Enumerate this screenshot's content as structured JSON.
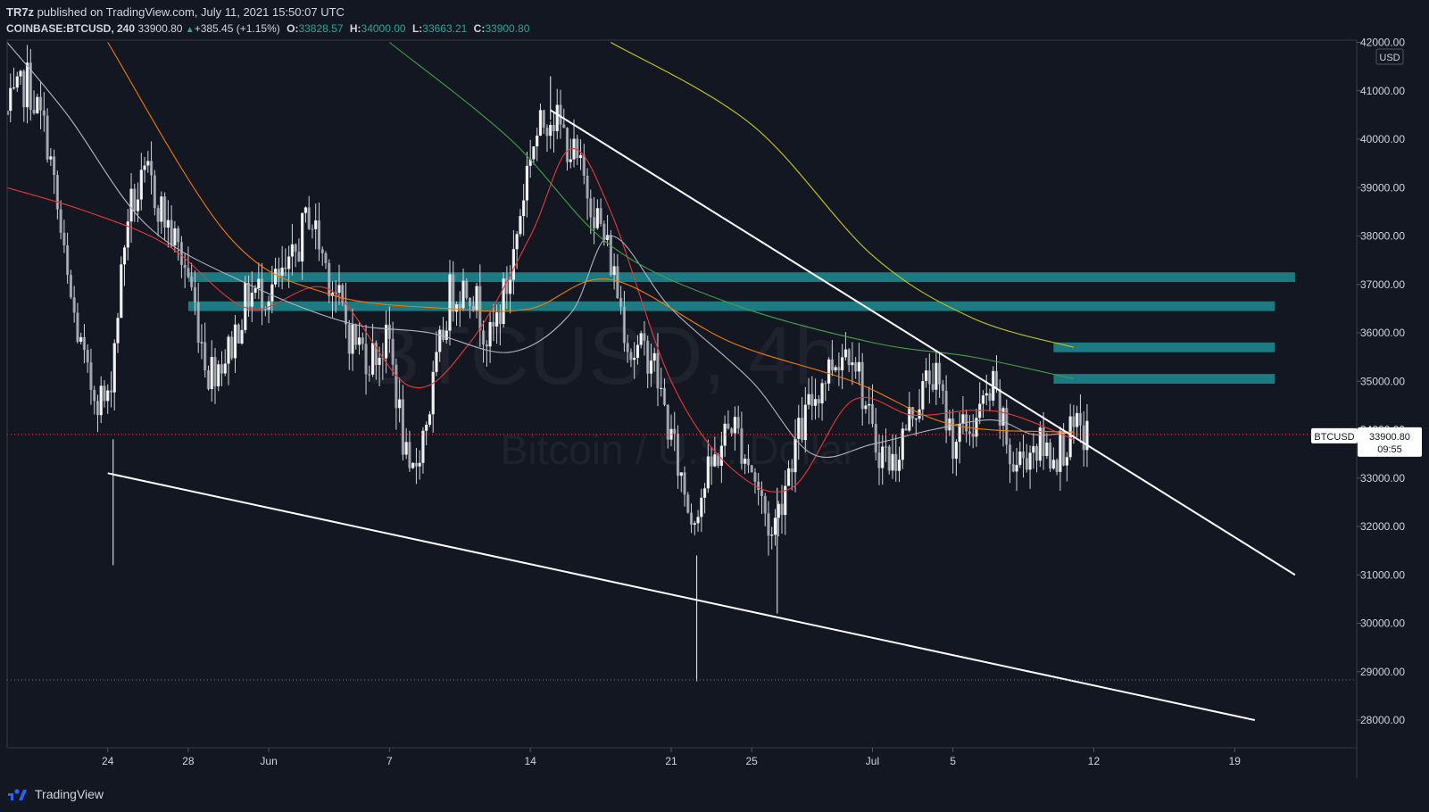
{
  "header": {
    "author": "TR7z",
    "published_text": " published on TradingView.com, July 11, 2021 15:50:07 UTC",
    "symbol": "COINBASE:BTCUSD, 240",
    "last": "33900.80",
    "change": "+385.45 (+1.15%)",
    "o_label": "O:",
    "o_value": "33828.57",
    "h_label": "H:",
    "h_value": "34000.00",
    "l_label": "L:",
    "l_value": "33663.21",
    "c_label": "C:",
    "c_value": "33900.80"
  },
  "watermark": {
    "main": "BTCUSD, 4h",
    "sub": "Bitcoin / U.S. Dollar"
  },
  "price_axis": {
    "currency": "USD",
    "price_tag_symbol": "BTCUSD",
    "price_tag_value": "33900.80",
    "price_tag_countdown": "09:55"
  },
  "footer": {
    "brand": "TradingView"
  },
  "colors": {
    "background": "#131722",
    "up_candle": "#d1d4dc",
    "down_candle": "#d1d4dc",
    "zone": "#1e8c93",
    "ma_red": "#e53935",
    "ma_orange": "#f57c00",
    "ma_white": "#b2b5be",
    "ma_green": "#43a047",
    "ma_yellow": "#c8c814",
    "trendline": "#ffffff",
    "last_price_line": "#ef5350"
  },
  "chart_data": {
    "type": "candlestick",
    "symbol": "COINBASE:BTCUSD",
    "timeframe": "240",
    "ylim": [
      27600,
      42000
    ],
    "x_range": [
      "2021-05-19",
      "2021-07-24"
    ],
    "y_ticks": [
      "28000.00",
      "29000.00",
      "30000.00",
      "31000.00",
      "32000.00",
      "33000.00",
      "34000.00",
      "35000.00",
      "36000.00",
      "37000.00",
      "38000.00",
      "39000.00",
      "40000.00",
      "41000.00",
      "42000.00"
    ],
    "x_ticks": [
      {
        "label": "24",
        "date": "2021-05-24"
      },
      {
        "label": "28",
        "date": "2021-05-28"
      },
      {
        "label": "Jun",
        "date": "2021-06-01"
      },
      {
        "label": "7",
        "date": "2021-06-07"
      },
      {
        "label": "14",
        "date": "2021-06-14"
      },
      {
        "label": "21",
        "date": "2021-06-21"
      },
      {
        "label": "25",
        "date": "2021-06-25"
      },
      {
        "label": "Jul",
        "date": "2021-07-01"
      },
      {
        "label": "5",
        "date": "2021-07-05"
      },
      {
        "label": "12",
        "date": "2021-07-12"
      },
      {
        "label": "19",
        "date": "2021-07-19"
      }
    ],
    "candles_close_path": [
      [
        "2021-05-19",
        40500
      ],
      [
        "2021-05-20",
        41200
      ],
      [
        "2021-05-21",
        40000
      ],
      [
        "2021-05-22",
        37000
      ],
      [
        "2021-05-23",
        35000
      ],
      [
        "2021-05-24",
        34500
      ],
      [
        "2021-05-25",
        38500
      ],
      [
        "2021-05-26",
        39200
      ],
      [
        "2021-05-27",
        38200
      ],
      [
        "2021-05-28",
        37200
      ],
      [
        "2021-05-29",
        35200
      ],
      [
        "2021-05-30",
        35600
      ],
      [
        "2021-05-31",
        36800
      ],
      [
        "2021-06-01",
        36900
      ],
      [
        "2021-06-02",
        37200
      ],
      [
        "2021-06-03",
        38500
      ],
      [
        "2021-06-04",
        37200
      ],
      [
        "2021-06-05",
        36000
      ],
      [
        "2021-06-06",
        35500
      ],
      [
        "2021-06-07",
        35800
      ],
      [
        "2021-06-08",
        32800
      ],
      [
        "2021-06-09",
        34500
      ],
      [
        "2021-06-10",
        36800
      ],
      [
        "2021-06-11",
        37000
      ],
      [
        "2021-06-12",
        35800
      ],
      [
        "2021-06-13",
        37200
      ],
      [
        "2021-06-14",
        39800
      ],
      [
        "2021-06-15",
        40600
      ],
      [
        "2021-06-16",
        39800
      ],
      [
        "2021-06-17",
        38800
      ],
      [
        "2021-06-18",
        37500
      ],
      [
        "2021-06-19",
        35600
      ],
      [
        "2021-06-20",
        35600
      ],
      [
        "2021-06-21",
        33800
      ],
      [
        "2021-06-22",
        32200
      ],
      [
        "2021-06-23",
        33200
      ],
      [
        "2021-06-24",
        34200
      ],
      [
        "2021-06-25",
        33200
      ],
      [
        "2021-06-26",
        31800
      ],
      [
        "2021-06-27",
        33500
      ],
      [
        "2021-06-28",
        34600
      ],
      [
        "2021-06-29",
        35400
      ],
      [
        "2021-06-30",
        35800
      ],
      [
        "2021-07-01",
        33800
      ],
      [
        "2021-07-02",
        33300
      ],
      [
        "2021-07-03",
        34400
      ],
      [
        "2021-07-04",
        35200
      ],
      [
        "2021-07-05",
        33800
      ],
      [
        "2021-07-06",
        34100
      ],
      [
        "2021-07-07",
        34800
      ],
      [
        "2021-07-08",
        33200
      ],
      [
        "2021-07-09",
        33700
      ],
      [
        "2021-07-10",
        33500
      ],
      [
        "2021-07-11",
        33900
      ]
    ],
    "notable_extremes": [
      {
        "date": "2021-06-15",
        "high": 41300
      },
      {
        "date": "2021-06-22",
        "low": 28800
      },
      {
        "date": "2021-06-26",
        "low": 30200
      },
      {
        "date": "2021-05-24",
        "low": 31200
      }
    ],
    "horizontal_zones": [
      {
        "from": "2021-05-28",
        "to": "2021-07-22",
        "low": 37050,
        "high": 37250
      },
      {
        "from": "2021-05-28",
        "to": "2021-07-21",
        "low": 36450,
        "high": 36650
      },
      {
        "from": "2021-07-10",
        "to": "2021-07-21",
        "low": 35600,
        "high": 35800
      },
      {
        "from": "2021-07-10",
        "to": "2021-07-21",
        "low": 34950,
        "high": 35150
      }
    ],
    "trendlines": [
      {
        "name": "upper",
        "start": [
          "2021-06-15",
          40600
        ],
        "end": [
          "2021-07-22",
          31000
        ]
      },
      {
        "name": "lower",
        "start": [
          "2021-05-24",
          33100
        ],
        "end": [
          "2021-07-20",
          28000
        ]
      }
    ],
    "moving_averages": [
      {
        "color": "#e53935",
        "points": [
          [
            "2021-05-19",
            39000
          ],
          [
            "2021-05-23",
            38500
          ],
          [
            "2021-05-27",
            37800
          ],
          [
            "2021-05-31",
            36500
          ],
          [
            "2021-06-04",
            36900
          ],
          [
            "2021-06-08",
            34900
          ],
          [
            "2021-06-11",
            35800
          ],
          [
            "2021-06-14",
            38000
          ],
          [
            "2021-06-16",
            39800
          ],
          [
            "2021-06-18",
            38500
          ],
          [
            "2021-06-21",
            35000
          ],
          [
            "2021-06-24",
            33200
          ],
          [
            "2021-06-27",
            32800
          ],
          [
            "2021-06-30",
            34600
          ],
          [
            "2021-07-03",
            34300
          ],
          [
            "2021-07-06",
            34400
          ],
          [
            "2021-07-08",
            34300
          ],
          [
            "2021-07-11",
            33800
          ]
        ]
      },
      {
        "color": "#b2b5be",
        "points": [
          [
            "2021-05-19",
            42000
          ],
          [
            "2021-05-22",
            40500
          ],
          [
            "2021-05-26",
            38200
          ],
          [
            "2021-05-31",
            37000
          ],
          [
            "2021-06-05",
            36200
          ],
          [
            "2021-06-09",
            36000
          ],
          [
            "2021-06-13",
            35600
          ],
          [
            "2021-06-16",
            36400
          ],
          [
            "2021-06-18",
            38000
          ],
          [
            "2021-06-21",
            36500
          ],
          [
            "2021-06-25",
            35000
          ],
          [
            "2021-06-28",
            33500
          ],
          [
            "2021-07-01",
            33700
          ],
          [
            "2021-07-04",
            34000
          ],
          [
            "2021-07-07",
            34200
          ],
          [
            "2021-07-09",
            33900
          ],
          [
            "2021-07-11",
            33950
          ]
        ]
      },
      {
        "color": "#f57c00",
        "points": [
          [
            "2021-05-24",
            42000
          ],
          [
            "2021-05-30",
            38000
          ],
          [
            "2021-06-04",
            36800
          ],
          [
            "2021-06-10",
            36500
          ],
          [
            "2021-06-14",
            36500
          ],
          [
            "2021-06-18",
            37100
          ],
          [
            "2021-06-24",
            35800
          ],
          [
            "2021-06-30",
            35000
          ],
          [
            "2021-07-05",
            34100
          ],
          [
            "2021-07-11",
            33950
          ]
        ]
      },
      {
        "color": "#43a047",
        "points": [
          [
            "2021-06-07",
            42000
          ],
          [
            "2021-06-13",
            40000
          ],
          [
            "2021-06-18",
            37800
          ],
          [
            "2021-06-24",
            36600
          ],
          [
            "2021-07-01",
            35800
          ],
          [
            "2021-07-06",
            35500
          ],
          [
            "2021-07-11",
            35050
          ]
        ]
      },
      {
        "color": "#c8c814",
        "points": [
          [
            "2021-06-18",
            42000
          ],
          [
            "2021-06-25",
            40300
          ],
          [
            "2021-07-01",
            37600
          ],
          [
            "2021-07-06",
            36300
          ],
          [
            "2021-07-11",
            35700
          ]
        ]
      }
    ],
    "last_price": 33900.8,
    "dotted_level": 28830,
    "xlabel": "",
    "ylabel": "",
    "grid": false,
    "legend": "none"
  }
}
